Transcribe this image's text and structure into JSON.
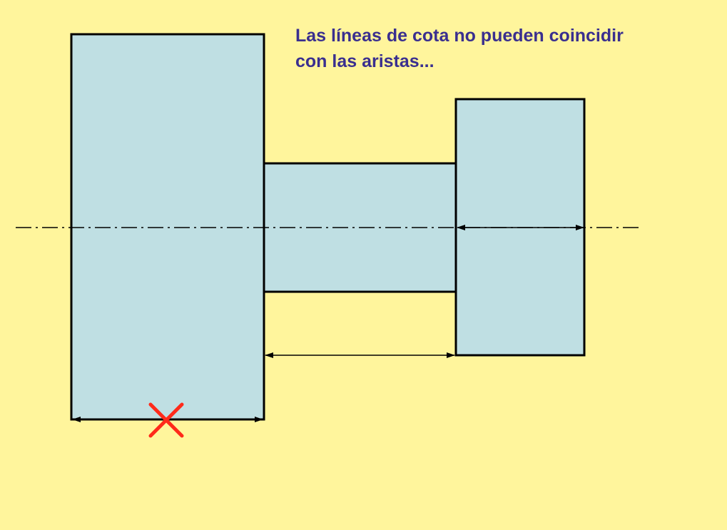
{
  "slide": {
    "caption_line1": "Las líneas de cota no pueden coincidir",
    "caption_line2": "con las aristas..."
  },
  "colors": {
    "background": "#fff59c",
    "part_fill": "#bfdfe3",
    "outline": "#000000",
    "caption": "#3a2f8f",
    "error_mark": "#ff2a1a"
  },
  "icons": {
    "wrong_mark": "red-x-icon"
  }
}
